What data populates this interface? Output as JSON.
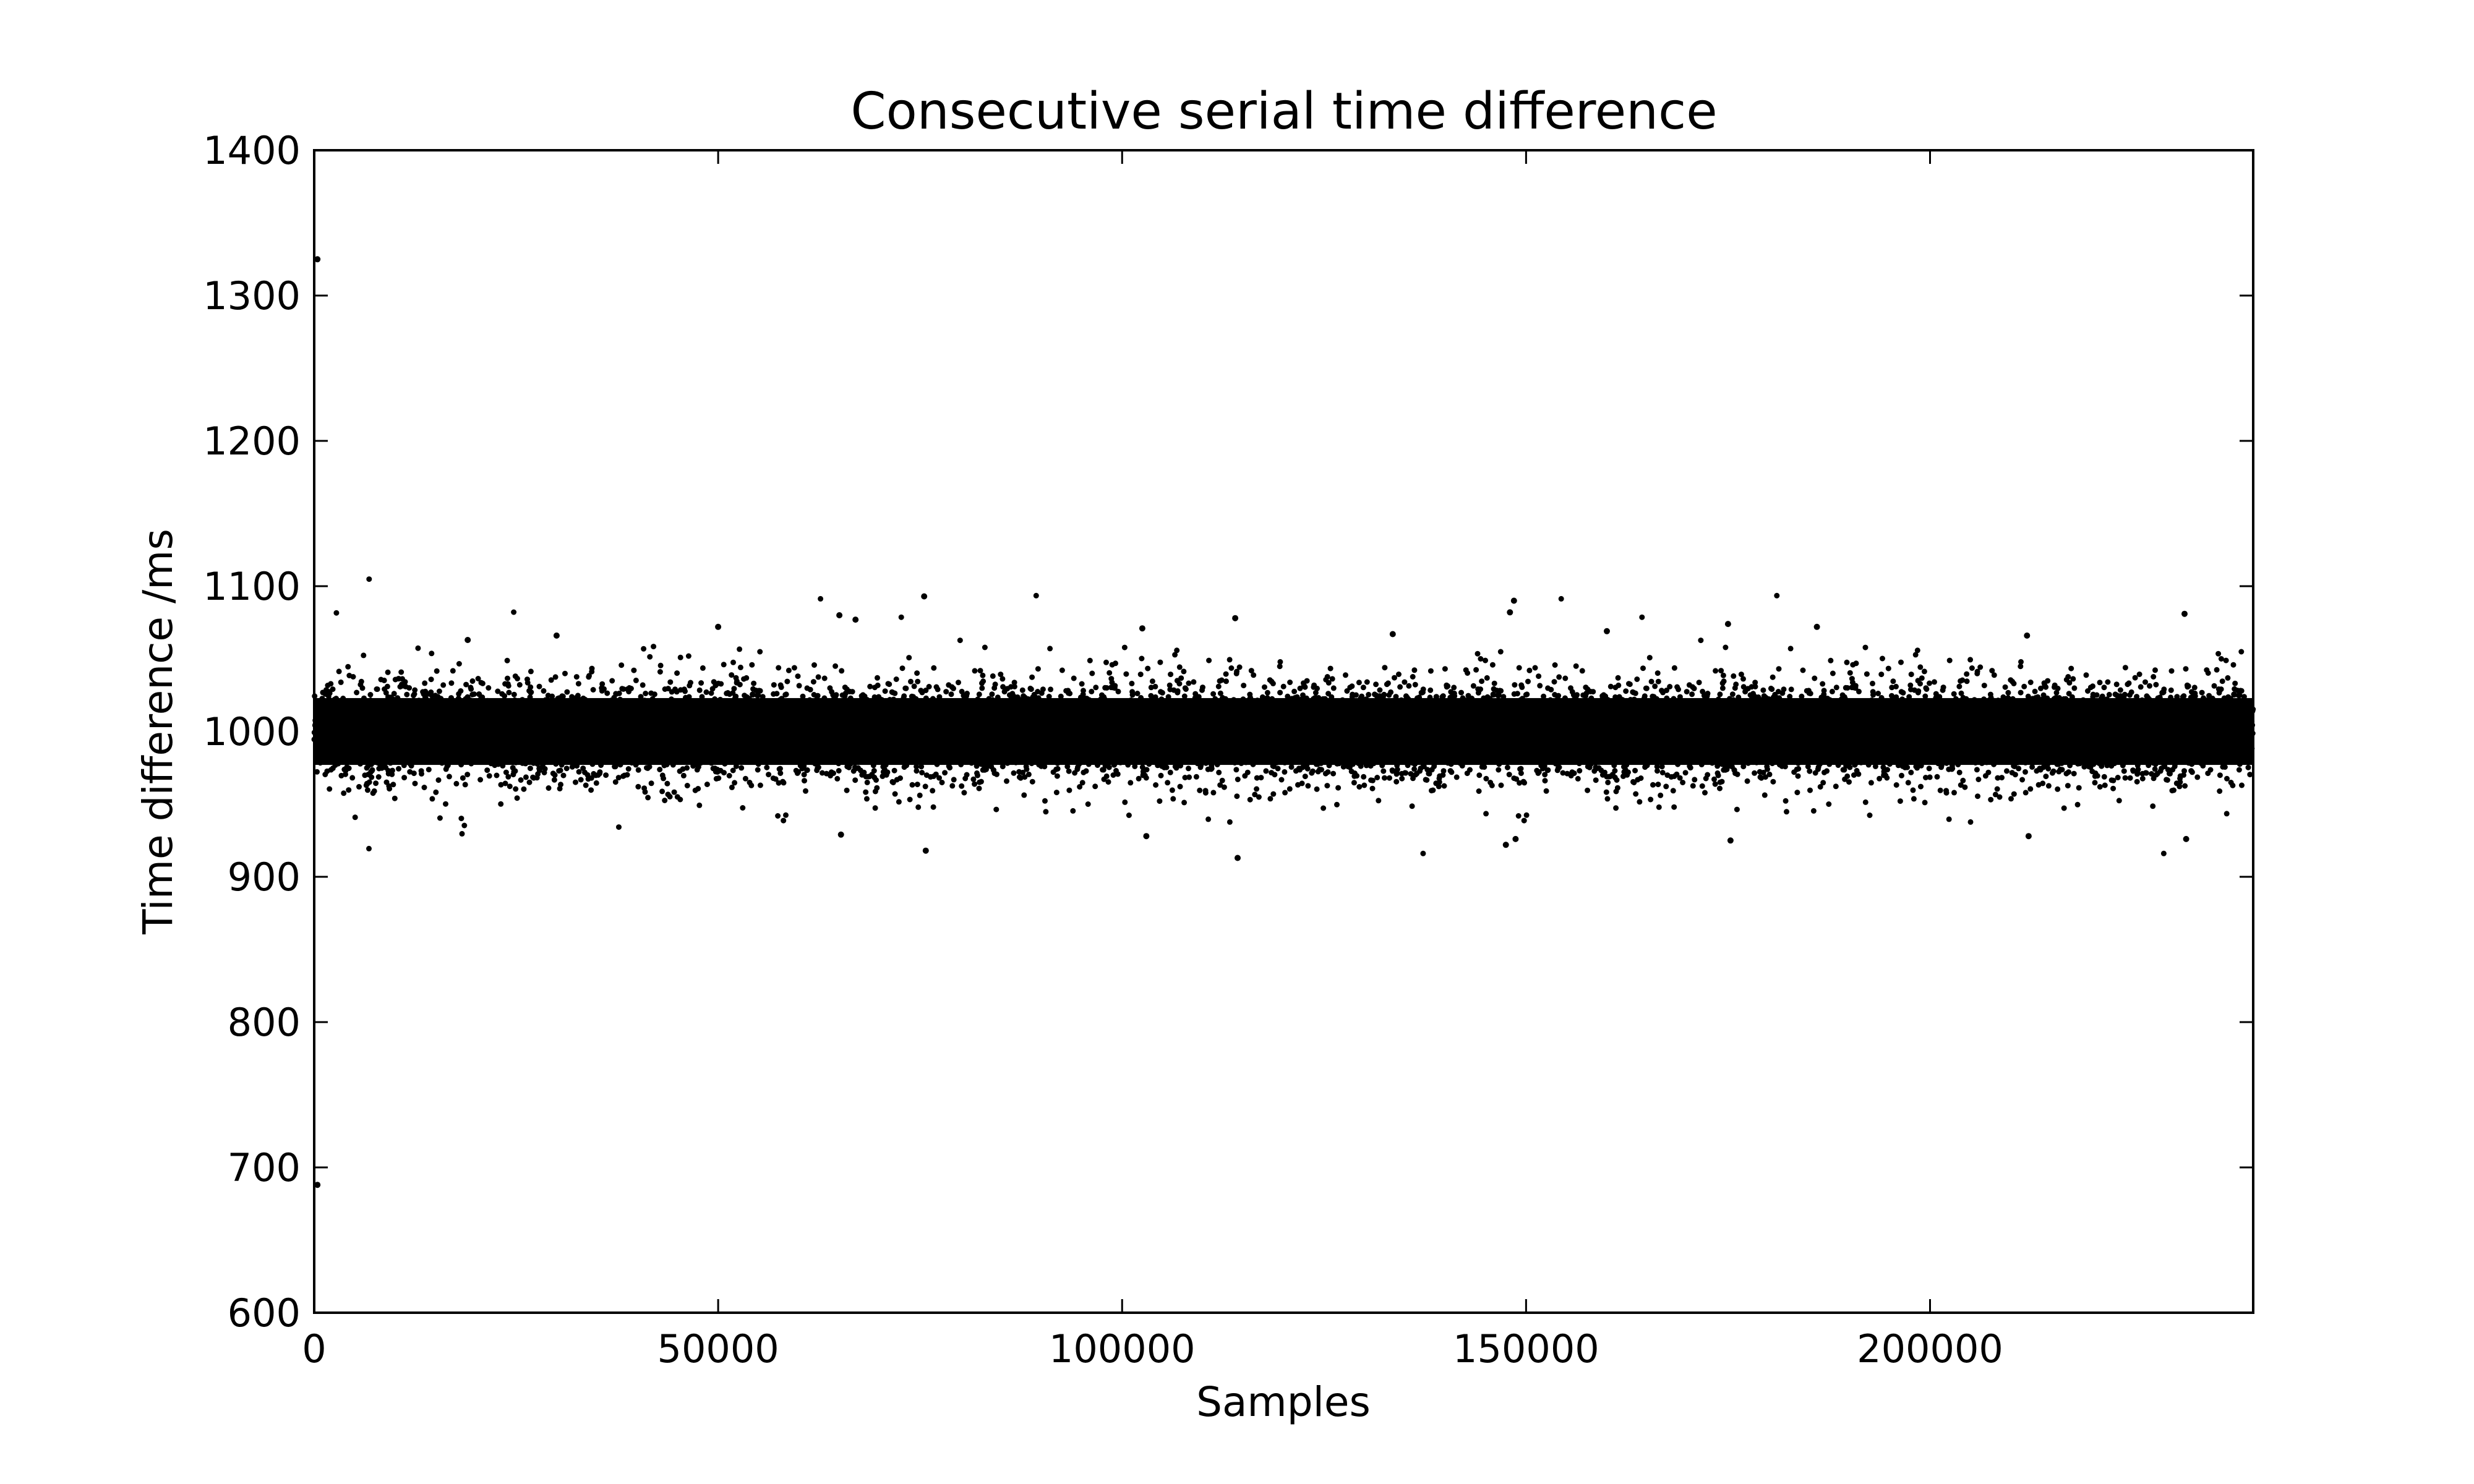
{
  "chart_data": {
    "type": "scatter",
    "title": "Consecutive serial time difference",
    "xlabel": "Samples",
    "ylabel": "Time difference /ms",
    "xlim": [
      0,
      240000
    ],
    "ylim": [
      600,
      1400
    ],
    "xticks": [
      0,
      50000,
      100000,
      150000,
      200000
    ],
    "xtick_labels": [
      "0",
      "50000",
      "100000",
      "150000",
      "200000"
    ],
    "yticks": [
      600,
      700,
      800,
      900,
      1000,
      1100,
      1200,
      1300,
      1400
    ],
    "ytick_labels": [
      "600",
      "700",
      "800",
      "900",
      "1000",
      "1100",
      "1200",
      "1300",
      "1400"
    ],
    "grid": false,
    "marker_color": "#000000",
    "series": [
      {
        "num_points": 240000,
        "points_summary": {
          "center": 1000,
          "dense_band": [
            965,
            1035
          ],
          "sparse_band": [
            940,
            1060
          ]
        },
        "outliers": [
          {
            "x": 400,
            "y": 1325
          },
          {
            "x": 400,
            "y": 688
          },
          {
            "x": 19000,
            "y": 1063
          },
          {
            "x": 30000,
            "y": 1066
          },
          {
            "x": 50000,
            "y": 1072
          },
          {
            "x": 65000,
            "y": 1080
          },
          {
            "x": 65200,
            "y": 929
          },
          {
            "x": 67000,
            "y": 1077
          },
          {
            "x": 75500,
            "y": 1093
          },
          {
            "x": 75700,
            "y": 918
          },
          {
            "x": 102500,
            "y": 1071
          },
          {
            "x": 103000,
            "y": 928
          },
          {
            "x": 114000,
            "y": 1078
          },
          {
            "x": 114300,
            "y": 913
          },
          {
            "x": 133500,
            "y": 1067
          },
          {
            "x": 148000,
            "y": 1082
          },
          {
            "x": 148500,
            "y": 1090
          },
          {
            "x": 147500,
            "y": 922
          },
          {
            "x": 148700,
            "y": 926
          },
          {
            "x": 160000,
            "y": 1069
          },
          {
            "x": 175000,
            "y": 1074
          },
          {
            "x": 175300,
            "y": 925
          },
          {
            "x": 186000,
            "y": 1072
          },
          {
            "x": 212000,
            "y": 1066
          },
          {
            "x": 212200,
            "y": 928
          },
          {
            "x": 231500,
            "y": 1081
          },
          {
            "x": 231700,
            "y": 926
          }
        ]
      }
    ]
  }
}
